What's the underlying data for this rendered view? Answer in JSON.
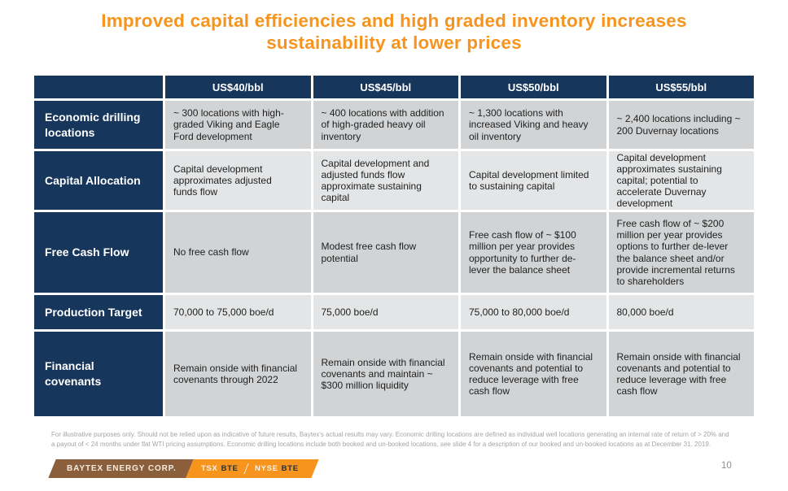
{
  "title": {
    "lines": [
      "Improved capital efficiencies and high graded inventory increases",
      "sustainability at lower prices"
    ]
  },
  "table": {
    "column_headers": [
      "US$40/bbl",
      "US$45/bbl",
      "US$50/bbl",
      "US$55/bbl"
    ],
    "rows": [
      {
        "label": "Economic drilling locations",
        "cells": [
          "~ 300 locations with high-graded Viking and Eagle Ford development",
          "~ 400 locations with addition of high-graded heavy oil inventory",
          "~ 1,300 locations with increased Viking and heavy oil inventory",
          "~ 2,400 locations including ~ 200 Duvernay locations"
        ]
      },
      {
        "label": "Capital Allocation",
        "cells": [
          "Capital development approximates adjusted funds flow",
          "Capital development and adjusted funds flow approximate sustaining capital",
          "Capital development limited to sustaining capital",
          "Capital development approximates sustaining capital; potential to accelerate Duvernay development"
        ]
      },
      {
        "label": "Free Cash Flow",
        "cells": [
          "No free cash flow",
          "Modest free cash flow potential",
          "Free cash flow of ~ $100 million per year provides opportunity to further de-lever the balance sheet",
          "Free cash flow of ~ $200 million per year provides options to further de-lever the balance sheet and/or provide incremental returns to shareholders"
        ]
      },
      {
        "label": "Production Target",
        "cells": [
          "70,000 to 75,000 boe/d",
          "75,000 boe/d",
          "75,000 to 80,000 boe/d",
          "80,000 boe/d"
        ]
      },
      {
        "label": "Financial covenants",
        "cells": [
          "Remain onside with financial covenants through 2022",
          "Remain onside with financial covenants and maintain ~ $300 million liquidity",
          "Remain onside with financial covenants and potential to reduce leverage with free cash flow",
          "Remain onside with financial covenants and potential to reduce leverage with free cash flow"
        ]
      }
    ]
  },
  "footnote": {
    "lines": [
      "For illustrative purposes only. Should not be relied upon as indicative of future results, Baytex's actual results may vary. Economic drilling locations are defined as individual well locations generating an internal rate of return of > 20% and",
      "a payout of < 24 months under flat WTI pricing assumptions. Economic drilling locations include both booked and un-booked locations, see slide 4 for a description of our booked and un-booked locations as at December 31, 2019."
    ]
  },
  "footer": {
    "company": "BAYTEX ENERGY CORP.",
    "exchanges": [
      {
        "exchange": "TSX",
        "ticker": "BTE"
      },
      {
        "exchange": "NYSE",
        "ticker": "BTE"
      }
    ],
    "page_number": "10"
  },
  "colors": {
    "accent_orange": "#F7941E",
    "navy": "#17365C",
    "brown": "#8C5F3C",
    "row_band_dark": "#D1D3D5",
    "row_band_light": "#E4E5E6",
    "footnote_gray": "#A5A5A5"
  }
}
